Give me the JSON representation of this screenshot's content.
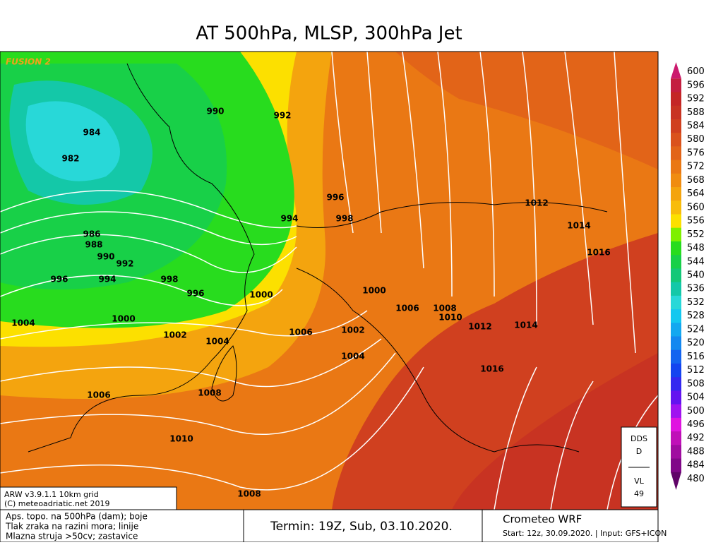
{
  "header": {
    "title": "AT 500hPa, MLSP, 300hPa Jet"
  },
  "map": {
    "watermark": "FUSION 2",
    "isobar_labels": [
      "990",
      "992",
      "984",
      "982",
      "996",
      "998",
      "994",
      "1012",
      "1014",
      "1016",
      "986",
      "988",
      "990",
      "992",
      "996",
      "994",
      "998",
      "996",
      "1000",
      "1000",
      "1006",
      "1008",
      "1010",
      "1004",
      "1000",
      "1002",
      "1006",
      "1002",
      "1012",
      "1014",
      "1004",
      "1004",
      "1016",
      "1006",
      "1008",
      "1010",
      "1008"
    ],
    "credits": [
      "ARW v3.9.1.1 10km grid",
      "(C) meteoadriatic.net 2019"
    ]
  },
  "legend": {
    "items": [
      {
        "label": "600",
        "color": "#cc1a6e"
      },
      {
        "label": "596",
        "color": "#c41e40"
      },
      {
        "label": "592",
        "color": "#c42626"
      },
      {
        "label": "588",
        "color": "#c83322"
      },
      {
        "label": "584",
        "color": "#d0401f"
      },
      {
        "label": "580",
        "color": "#da521c"
      },
      {
        "label": "576",
        "color": "#e26418"
      },
      {
        "label": "572",
        "color": "#ea7814"
      },
      {
        "label": "568",
        "color": "#f08c10"
      },
      {
        "label": "564",
        "color": "#f4a40e"
      },
      {
        "label": "560",
        "color": "#f8bc0a"
      },
      {
        "label": "556",
        "color": "#fce000"
      },
      {
        "label": "552",
        "color": "#7ef000"
      },
      {
        "label": "548",
        "color": "#28dc1e"
      },
      {
        "label": "544",
        "color": "#18d048"
      },
      {
        "label": "540",
        "color": "#14c878"
      },
      {
        "label": "536",
        "color": "#14c8a8"
      },
      {
        "label": "532",
        "color": "#28d8d8"
      },
      {
        "label": "528",
        "color": "#14c8f0"
      },
      {
        "label": "524",
        "color": "#14a8f0"
      },
      {
        "label": "520",
        "color": "#1488f0"
      },
      {
        "label": "516",
        "color": "#1464f0"
      },
      {
        "label": "512",
        "color": "#1444f0"
      },
      {
        "label": "508",
        "color": "#3428f0"
      },
      {
        "label": "504",
        "color": "#6414f0"
      },
      {
        "label": "500",
        "color": "#a014f0"
      },
      {
        "label": "496",
        "color": "#e014e0"
      },
      {
        "label": "492",
        "color": "#c010b8"
      },
      {
        "label": "488",
        "color": "#a00ca0"
      },
      {
        "label": "484",
        "color": "#800888"
      },
      {
        "label": "480",
        "color": "#600468"
      }
    ]
  },
  "info_box": {
    "lines": [
      "DDS",
      "D",
      "VL",
      "49"
    ]
  },
  "footer": {
    "description": [
      "Aps. topo. na 500hPa (dam); boje",
      "Tlak zraka na razini mora; linije",
      "Mlazna struja >50cv; zastavice"
    ],
    "termin": "Termin: 19Z, Sub, 03.10.2020.",
    "model": "Crometeo WRF",
    "start": "Start: 12z, 30.09.2020. | Input: GFS+ICON"
  }
}
